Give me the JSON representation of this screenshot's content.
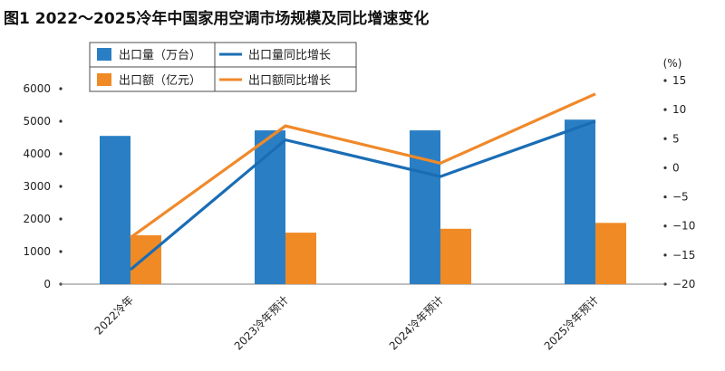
{
  "title": "图1  2022～2025冷年中国家用空调市场规模及同比增速变化",
  "colors": {
    "blue": "#2a7fc4",
    "orange": "#f08a24",
    "blue_line": "#1a6db5",
    "orange_line": "#f0892a",
    "axis": "#7f7f7f",
    "legend_border": "#4d4d4d"
  },
  "chart_data": {
    "type": "bar",
    "categories": [
      "2022冷年",
      "2023冷年预计",
      "2024冷年预计",
      "2025冷年预计"
    ],
    "series": [
      {
        "name": "出口量（万台）",
        "type": "bar",
        "axis": "left",
        "values": [
          4550,
          4720,
          4720,
          5050
        ]
      },
      {
        "name": "出口额（亿元）",
        "type": "bar",
        "axis": "left",
        "values": [
          1500,
          1580,
          1700,
          1880
        ]
      },
      {
        "name": "出口量同比增长",
        "type": "line",
        "axis": "right",
        "values": [
          -17.5,
          4.8,
          -1.5,
          8.0
        ]
      },
      {
        "name": "出口额同比增长",
        "type": "line",
        "axis": "right",
        "values": [
          -12.0,
          7.2,
          0.8,
          12.7
        ]
      }
    ],
    "left_axis": {
      "ylim": [
        0,
        6000
      ],
      "ticks": [
        "0",
        "1000",
        "2000",
        "3000",
        "4000",
        "5000",
        "6000"
      ]
    },
    "right_axis": {
      "ylim": [
        -20,
        15
      ],
      "unit_label": "(%)",
      "ticks": [
        "-20",
        "-15",
        "-10",
        "-5",
        "0",
        "5",
        "10",
        "15"
      ]
    },
    "legend_position": "top-left",
    "grid": false
  }
}
